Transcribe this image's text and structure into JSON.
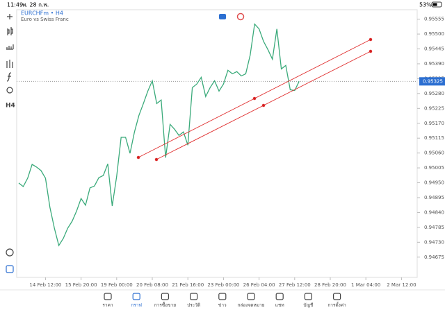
{
  "status_bar": {
    "time": "11:49",
    "date": "พ. 28 ก.พ.",
    "battery": "53%"
  },
  "chart_data": {
    "type": "line",
    "title": "EURCHFm • H4",
    "subtitle": "Euro vs Swiss Franc",
    "timeframe": "H4",
    "color": "#3aaa7a",
    "current_price": 0.95325,
    "values": [
      0.94949,
      0.94936,
      0.94967,
      0.95018,
      0.95008,
      0.94995,
      0.94967,
      0.94859,
      0.94782,
      0.94718,
      0.94744,
      0.94782,
      0.94808,
      0.94846,
      0.94892,
      0.94867,
      0.94931,
      0.94938,
      0.94969,
      0.94977,
      0.9502,
      0.94864,
      0.94974,
      0.95118,
      0.95118,
      0.95059,
      0.95138,
      0.95199,
      0.95243,
      0.95289,
      0.95327,
      0.95243,
      0.95256,
      0.95043,
      0.95166,
      0.95148,
      0.95125,
      0.95138,
      0.95089,
      0.95302,
      0.95315,
      0.9534,
      0.95269,
      0.95302,
      0.95327,
      0.95289,
      0.95315,
      0.95366,
      0.95353,
      0.95361,
      0.95345,
      0.95353,
      0.95422,
      0.95537,
      0.95519,
      0.95473,
      0.95442,
      0.95407,
      0.95519,
      0.95371,
      0.95384,
      0.95294,
      0.95291,
      0.95325
    ],
    "xlim": [
      0,
      90
    ],
    "xticks": [
      {
        "value": 6,
        "label": "14 Feb 12:00"
      },
      {
        "value": 14,
        "label": "15 Feb 20:00"
      },
      {
        "value": 22,
        "label": "19 Feb 00:00"
      },
      {
        "value": 30,
        "label": "20 Feb 08:00"
      },
      {
        "value": 38,
        "label": "21 Feb 16:00"
      },
      {
        "value": 46,
        "label": "23 Feb 00:00"
      },
      {
        "value": 54,
        "label": "26 Feb 04:00"
      },
      {
        "value": 62,
        "label": "27 Feb 12:00"
      },
      {
        "value": 70,
        "label": "28 Feb 20:00"
      },
      {
        "value": 78,
        "label": "1 Mar 04:00"
      },
      {
        "value": 86,
        "label": "2 Mar 12:00"
      }
    ],
    "ylim": [
      0.946,
      0.9559
    ],
    "yticks": [
      0.95555,
      {
        "value": 0.955,
        "label": "0.95500"
      },
      0.95445,
      {
        "value": 0.9539,
        "label": "0.95390"
      },
      0.95335,
      {
        "value": 0.9528,
        "label": "0.95280"
      },
      0.95225,
      {
        "value": 0.9517,
        "label": "0.95170"
      },
      0.95115,
      {
        "value": 0.9506,
        "label": "0.95060"
      },
      0.95005,
      {
        "value": 0.9495,
        "label": "0.94950"
      },
      0.94895,
      {
        "value": 0.9484,
        "label": "0.94840"
      },
      0.94785,
      {
        "value": 0.9473,
        "label": "0.94730"
      },
      0.94675
    ]
  },
  "nav": [
    "ราคา",
    "กราฟ",
    "การซื้อขาย",
    "ประวัติ",
    "ข่าว",
    "กล่องจดหมาย",
    "แชท",
    "บัญชี",
    "การตั้งค่า"
  ]
}
